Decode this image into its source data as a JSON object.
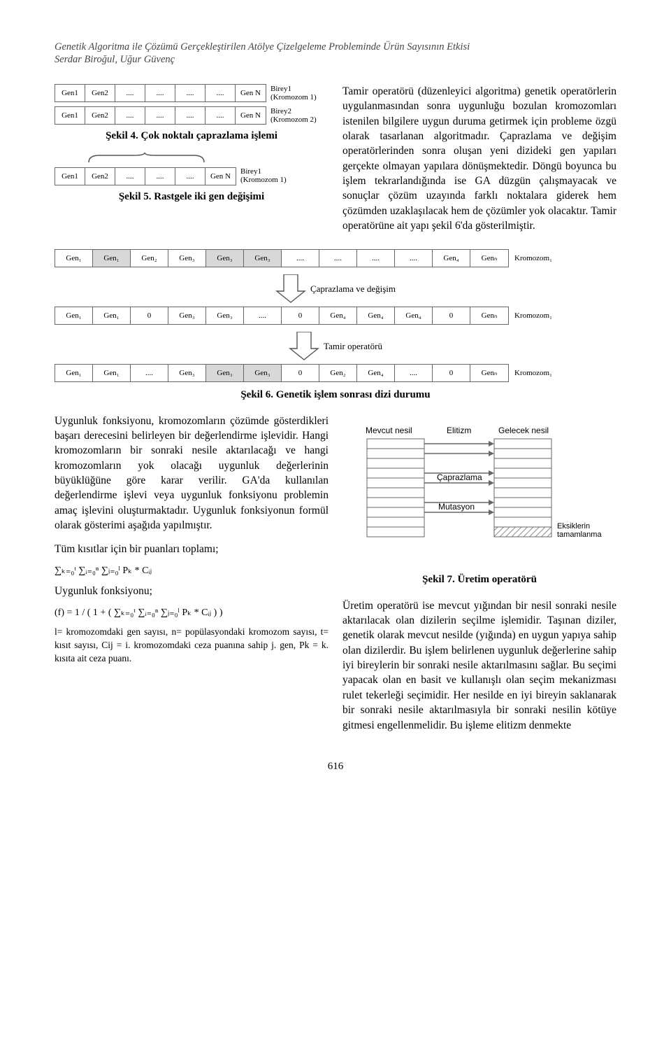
{
  "header": {
    "title": "Genetik Algoritma ile Çözümü Gerçekleştirilen Atölye Çizelgeleme Probleminde Ürün Sayısının Etkisi",
    "authors": "Serdar Biroğul, Uğur Güvenç"
  },
  "fig4": {
    "caption": "Şekil 4. Çok noktalı çaprazlama işlemi",
    "rows": [
      {
        "cells": [
          "Gen1",
          "Gen2",
          "....",
          "....",
          "....",
          "....",
          "Gen N"
        ],
        "side": "Birey1\n(Kromozom 1)"
      },
      {
        "cells": [
          "Gen1",
          "Gen2",
          "....",
          "....",
          "....",
          "....",
          "Gen N"
        ],
        "side": "Birey2\n(Kromozom 2)"
      }
    ]
  },
  "fig5": {
    "caption": "Şekil 5. Rastgele iki gen değişimi",
    "cells": [
      "Gen1",
      "Gen2",
      "....",
      "....",
      "....",
      "Gen N"
    ],
    "side": "Birey1\n(Kromozom 1)"
  },
  "paragraph_top_right": "Tamir operatörü (düzenleyici algoritma) genetik operatörlerin uygulanmasından sonra uygunluğu bozulan kromozomları istenilen bilgilere uygun duruma getirmek için probleme özgü olarak tasarlanan algoritmadır. Çaprazlama ve değişim operatörlerinden sonra oluşan yeni dizideki gen yapıları gerçekte olmayan yapılara dönüşmektedir. Döngü boyunca bu işlem tekrarlandığında ise GA düzgün çalışmayacak ve sonuçlar çözüm uzayında farklı noktalara giderek hem çözümden uzaklaşılacak hem de çözümler yok olacaktır. Tamir operatörüne ait yapı şekil 6'da gösterilmiştir.",
  "fig6": {
    "caption": "Şekil 6. Genetik işlem sonrası dizi durumu",
    "op1": "Çaprazlama ve değişim",
    "op2": "Tamir operatörü",
    "side": "Kromozom₁",
    "row1": [
      "Gen₁",
      "Gen₁",
      "Gen₂",
      "Gen₃",
      "Gen₃",
      "Gen₃",
      "....",
      "....",
      "....",
      "....",
      "Gen₄",
      "Genₙ"
    ],
    "row2": [
      "Gen₁",
      "Gen₁",
      "0",
      "Gen₃",
      "Gen₃",
      "....",
      "0",
      "Gen₄",
      "Gen₄",
      "Gen₄",
      "0",
      "Genₙ"
    ],
    "row3": [
      "Gen₁",
      "Gen₁",
      "....",
      "Gen₃",
      "Gen₃",
      "Gen₃",
      "0",
      "Gen₂",
      "Gen₄",
      "....",
      "0",
      "Genₙ"
    ],
    "shaded_row1": [
      1,
      4,
      5
    ],
    "shaded_row3": [
      4,
      5
    ]
  },
  "paragraph_bottom_left": "Uygunluk fonksiyonu, kromozomların çözümde gösterdikleri başarı derecesini belirleyen bir değerlendirme işlevidir. Hangi kromozomların bir sonraki nesile aktarılacağı ve hangi kromozomların yok olacağı uygunluk değerlerinin büyüklüğüne göre karar verilir. GA'da kullanılan değerlendirme işlevi veya uygunluk fonksiyonu problemin amaç işlevini oluşturmaktadır. Uygunluk fonksiyonun formül olarak gösterimi aşağıda yapılmıştır.",
  "label_tum_kisitlar": "Tüm kısıtlar için bir puanları toplamı;",
  "label_uygunluk": "Uygunluk fonksiyonu;",
  "math_sum": "∑ₖ₌₀ᵗ ∑ᵢ₌₀ⁿ ∑ⱼ₌₀ˡ Pₖ * Cᵢⱼ",
  "math_f": "(f) = 1 / ( 1 + ( ∑ₖ₌₀ᵗ ∑ᵢ₌₀ⁿ ∑ⱼ₌₀ˡ Pₖ * Cᵢⱼ ) )",
  "footnote_defs": "l= kromozomdaki gen sayısı, n= popülasyondaki kromozom sayısı, t= kısıt sayısı, Cij = i. kromozomdaki ceza puanına sahip j. gen, Pk = k. kısıta ait ceza puanı.",
  "fig7": {
    "caption": "Şekil 7. Üretim operatörü",
    "labels": {
      "left": "Mevcut nesil",
      "mid": "Elitizm",
      "right": "Gelecek nesil",
      "cross": "Çaprazlama",
      "mut": "Mutasyon",
      "fill": "Eksiklerin\ntamamlanması"
    },
    "colors": {
      "outline": "#666666",
      "hatch": "#888888"
    }
  },
  "paragraph_bottom_right": "Üretim operatörü ise mevcut yığından bir nesil sonraki nesile aktarılacak olan dizilerin seçilme işlemidir. Taşınan diziler, genetik olarak mevcut nesilde (yığında) en uygun yapıya sahip olan dizilerdir. Bu işlem belirlenen uygunluk değerlerine sahip iyi bireylerin bir sonraki nesile aktarılmasını sağlar. Bu seçimi yapacak olan en basit ve kullanışlı olan seçim mekanizması rulet tekerleği seçimidir. Her nesilde en iyi bireyin saklanarak bir sonraki nesile aktarılmasıyla bir sonraki nesilin kötüye gitmesi engellenmelidir. Bu işleme elitizm denmekte",
  "page_number": "616"
}
